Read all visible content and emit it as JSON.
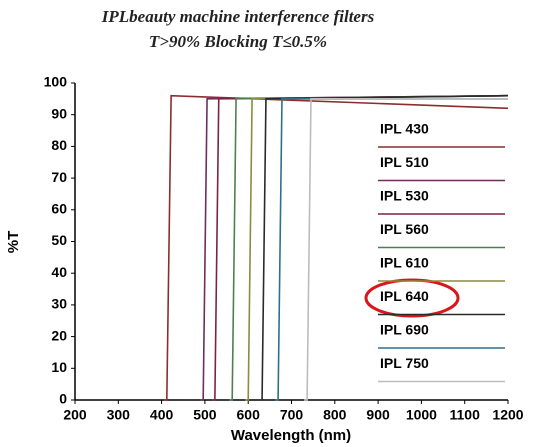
{
  "chart_data": {
    "type": "line",
    "title": "IPLbeauty machine interference filters",
    "subtitle": "T>90% Blocking T≤0.5%",
    "x_label": "Wavelength (nm)",
    "y_label": "%T",
    "xlim": [
      200,
      1200
    ],
    "ylim": [
      0,
      100
    ],
    "xticks": [
      200,
      300,
      400,
      500,
      600,
      700,
      800,
      900,
      1000,
      1100,
      1200
    ],
    "yticks": [
      0,
      10,
      20,
      30,
      40,
      50,
      60,
      70,
      80,
      90,
      100
    ],
    "legend": "right",
    "series": [
      {
        "name": "IPL 430",
        "color": "#8b2d2d",
        "x": [
          405,
          412,
          422,
          1200
        ],
        "values": [
          0,
          0,
          96,
          92
        ]
      },
      {
        "name": "IPL 510",
        "color": "#6b2f5f",
        "x": [
          489,
          496,
          505,
          1200
        ],
        "values": [
          0,
          0,
          95,
          96
        ]
      },
      {
        "name": "IPL 530",
        "color": "#7a2444",
        "x": [
          516,
          523,
          532,
          1200
        ],
        "values": [
          0,
          0,
          95,
          96
        ]
      },
      {
        "name": "IPL 560",
        "color": "#4f7f4f",
        "x": [
          556,
          563,
          572,
          1200
        ],
        "values": [
          0,
          0,
          95,
          96
        ]
      },
      {
        "name": "IPL 610",
        "color": "#8c8c3e",
        "x": [
          593,
          600,
          609,
          1200
        ],
        "values": [
          0,
          0,
          95,
          95
        ]
      },
      {
        "name": "IPL 640",
        "color": "#2a2a2a",
        "x": [
          625,
          632,
          641,
          1200
        ],
        "values": [
          0,
          0,
          95,
          96
        ]
      },
      {
        "name": "IPL 690",
        "color": "#2f6f8a",
        "x": [
          662,
          669,
          678,
          1200
        ],
        "values": [
          0,
          0,
          95,
          95
        ]
      },
      {
        "name": "IPL 750",
        "color": "#bcbcbc",
        "x": [
          729,
          736,
          745,
          1200
        ],
        "values": [
          0,
          0,
          95,
          95
        ]
      }
    ]
  }
}
